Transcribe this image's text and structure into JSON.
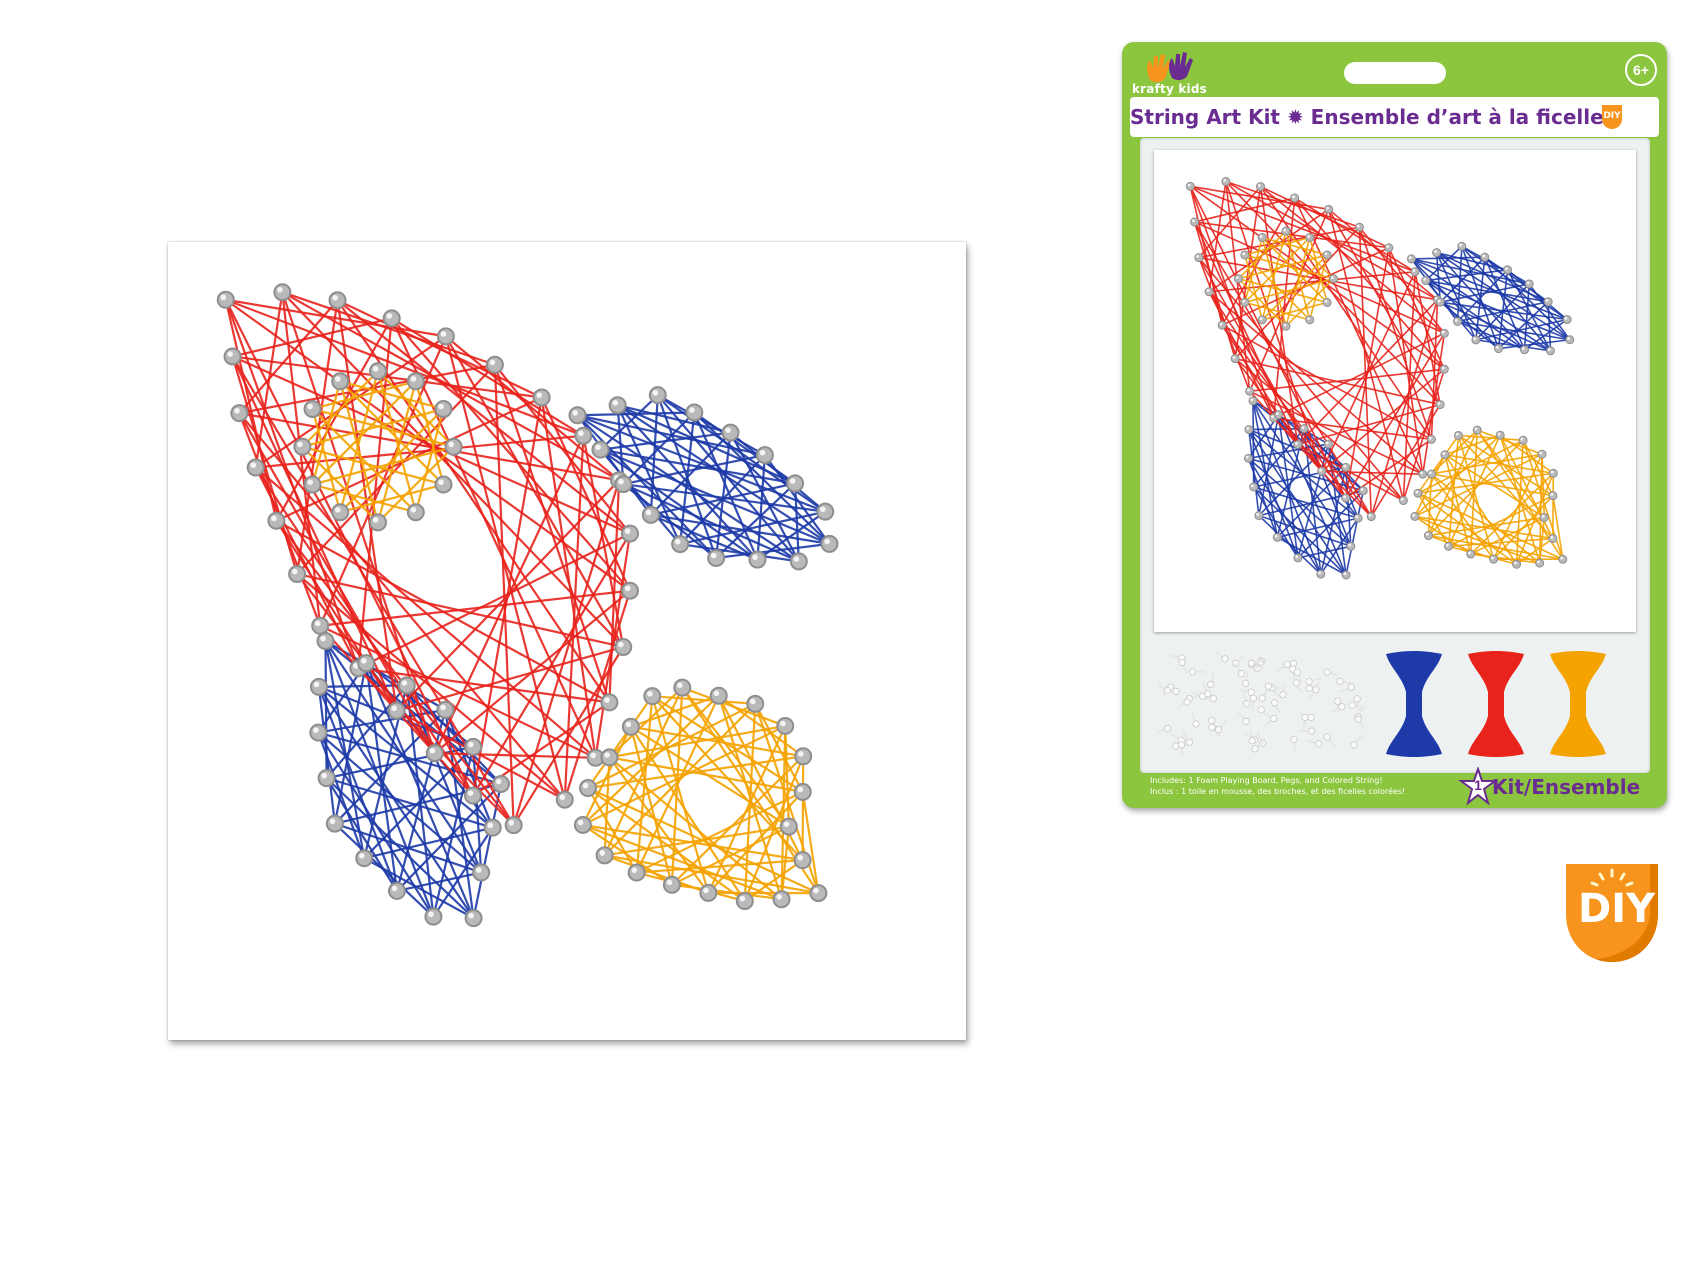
{
  "product": {
    "brand": "krafty kids",
    "age": "6+",
    "title": "String Art Kit ✹ Ensemble d’art à la ficelle",
    "includes_en": "Includes: 1 Foam Playing Board, Pegs, and Colored String!",
    "includes_fr": "Inclus : 1 toile en mousse, des broches, et des ficelles colorées!",
    "kit_count": "1",
    "kit_label": "Kit/Ensemble",
    "diy_badge": "DIY"
  },
  "logo": {
    "diy": "DIY"
  },
  "colors": {
    "package_green": "#8cc63f",
    "title_purple": "#6a2c91",
    "string_red": "#e8231c",
    "string_blue": "#1d3aa8",
    "string_yellow": "#f5a300",
    "diy_orange": "#f7941d"
  },
  "icons": [
    "hands-logo-icon",
    "age-badge-icon",
    "diy-badge-icon",
    "star-badge-icon",
    "pegs-icon",
    "string-bobbin-icon"
  ]
}
